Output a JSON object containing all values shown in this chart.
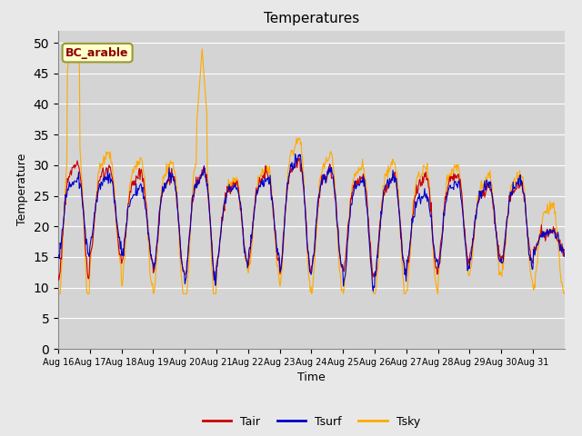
{
  "title": "Temperatures",
  "xlabel": "Time",
  "ylabel": "Temperature",
  "annotation": "BC_arable",
  "legend": [
    "Tair",
    "Tsurf",
    "Tsky"
  ],
  "line_colors": [
    "#cc0000",
    "#0000cc",
    "#ffaa00"
  ],
  "ylim": [
    0,
    52
  ],
  "yticks": [
    0,
    5,
    10,
    15,
    20,
    25,
    30,
    35,
    40,
    45,
    50
  ],
  "bg_color": "#e8e8e8",
  "plot_bg_color": "#d4d4d4",
  "grid_color": "#ffffff",
  "days": [
    "Aug 16",
    "Aug 17",
    "Aug 18",
    "Aug 19",
    "Aug 20",
    "Aug 21",
    "Aug 22",
    "Aug 23",
    "Aug 24",
    "Aug 25",
    "Aug 26",
    "Aug 27",
    "Aug 28",
    "Aug 29",
    "Aug 30",
    "Aug 31"
  ]
}
